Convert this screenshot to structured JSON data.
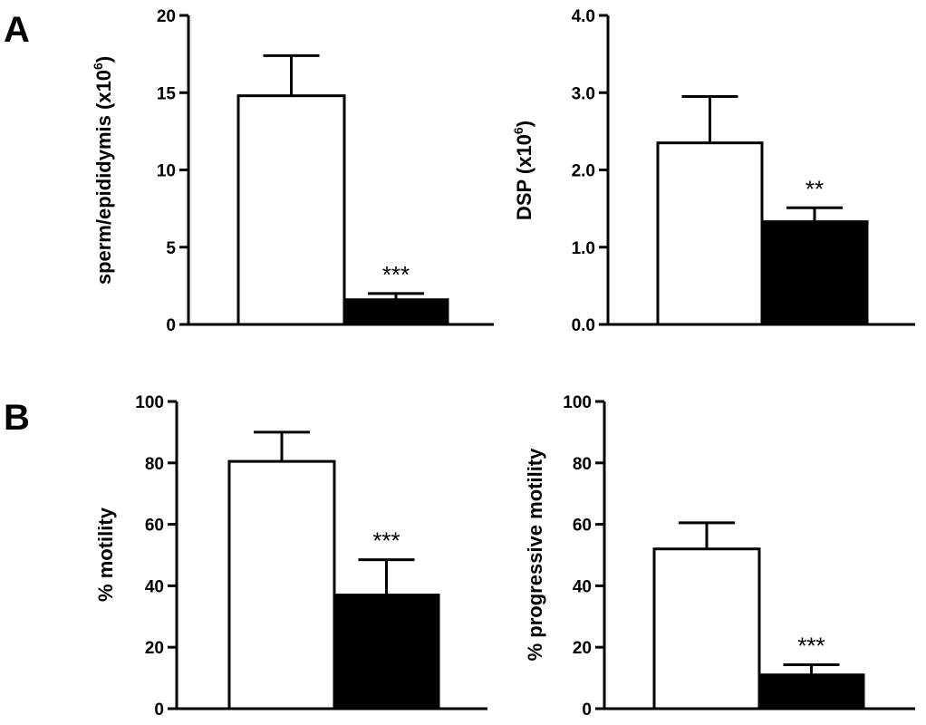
{
  "panels": [
    "A",
    "B"
  ],
  "chart_data": [
    {
      "type": "bar",
      "panel": "A",
      "ylabel": {
        "main": "sperm/epididymis (x10",
        "sup": "6",
        "close": ")"
      },
      "ylim": [
        0,
        20
      ],
      "yticks": [
        "0",
        "5",
        "10",
        "15",
        "20"
      ],
      "yticks_values": [
        0,
        5,
        10,
        15,
        20
      ],
      "bars": [
        {
          "value": 14.8,
          "error": 2.6,
          "fill": "#ffffff"
        },
        {
          "value": 1.6,
          "error": 0.4,
          "fill": "#000000"
        }
      ],
      "significance": [
        "",
        "***"
      ]
    },
    {
      "type": "bar",
      "panel": "A",
      "ylabel": {
        "main": "DSP (x10",
        "sup": "6",
        "close": ")"
      },
      "ylim": [
        0,
        4
      ],
      "yticks": [
        "0.0",
        "1.0",
        "2.0",
        "3.0",
        "4.0"
      ],
      "yticks_values": [
        0,
        1,
        2,
        3,
        4
      ],
      "bars": [
        {
          "value": 2.35,
          "error": 0.6,
          "fill": "#ffffff"
        },
        {
          "value": 1.33,
          "error": 0.18,
          "fill": "#000000"
        }
      ],
      "significance": [
        "",
        "**"
      ]
    },
    {
      "type": "bar",
      "panel": "B",
      "ylabel": {
        "main": "% motility",
        "sup": "",
        "close": ""
      },
      "ylim": [
        0,
        100
      ],
      "yticks": [
        "0",
        "20",
        "40",
        "60",
        "80",
        "100"
      ],
      "yticks_values": [
        0,
        20,
        40,
        60,
        80,
        100
      ],
      "bars": [
        {
          "value": 80.5,
          "error": 9.5,
          "fill": "#ffffff"
        },
        {
          "value": 37,
          "error": 11.5,
          "fill": "#000000"
        }
      ],
      "significance": [
        "",
        "***"
      ]
    },
    {
      "type": "bar",
      "panel": "B",
      "ylabel": {
        "main": "% progressive motility",
        "sup": "",
        "close": ""
      },
      "ylim": [
        0,
        100
      ],
      "yticks": [
        "0",
        "20",
        "40",
        "60",
        "80",
        "100"
      ],
      "yticks_values": [
        0,
        20,
        40,
        60,
        80,
        100
      ],
      "bars": [
        {
          "value": 52,
          "error": 8.5,
          "fill": "#ffffff"
        },
        {
          "value": 11,
          "error": 3.3,
          "fill": "#000000"
        }
      ],
      "significance": [
        "",
        "***"
      ]
    }
  ]
}
